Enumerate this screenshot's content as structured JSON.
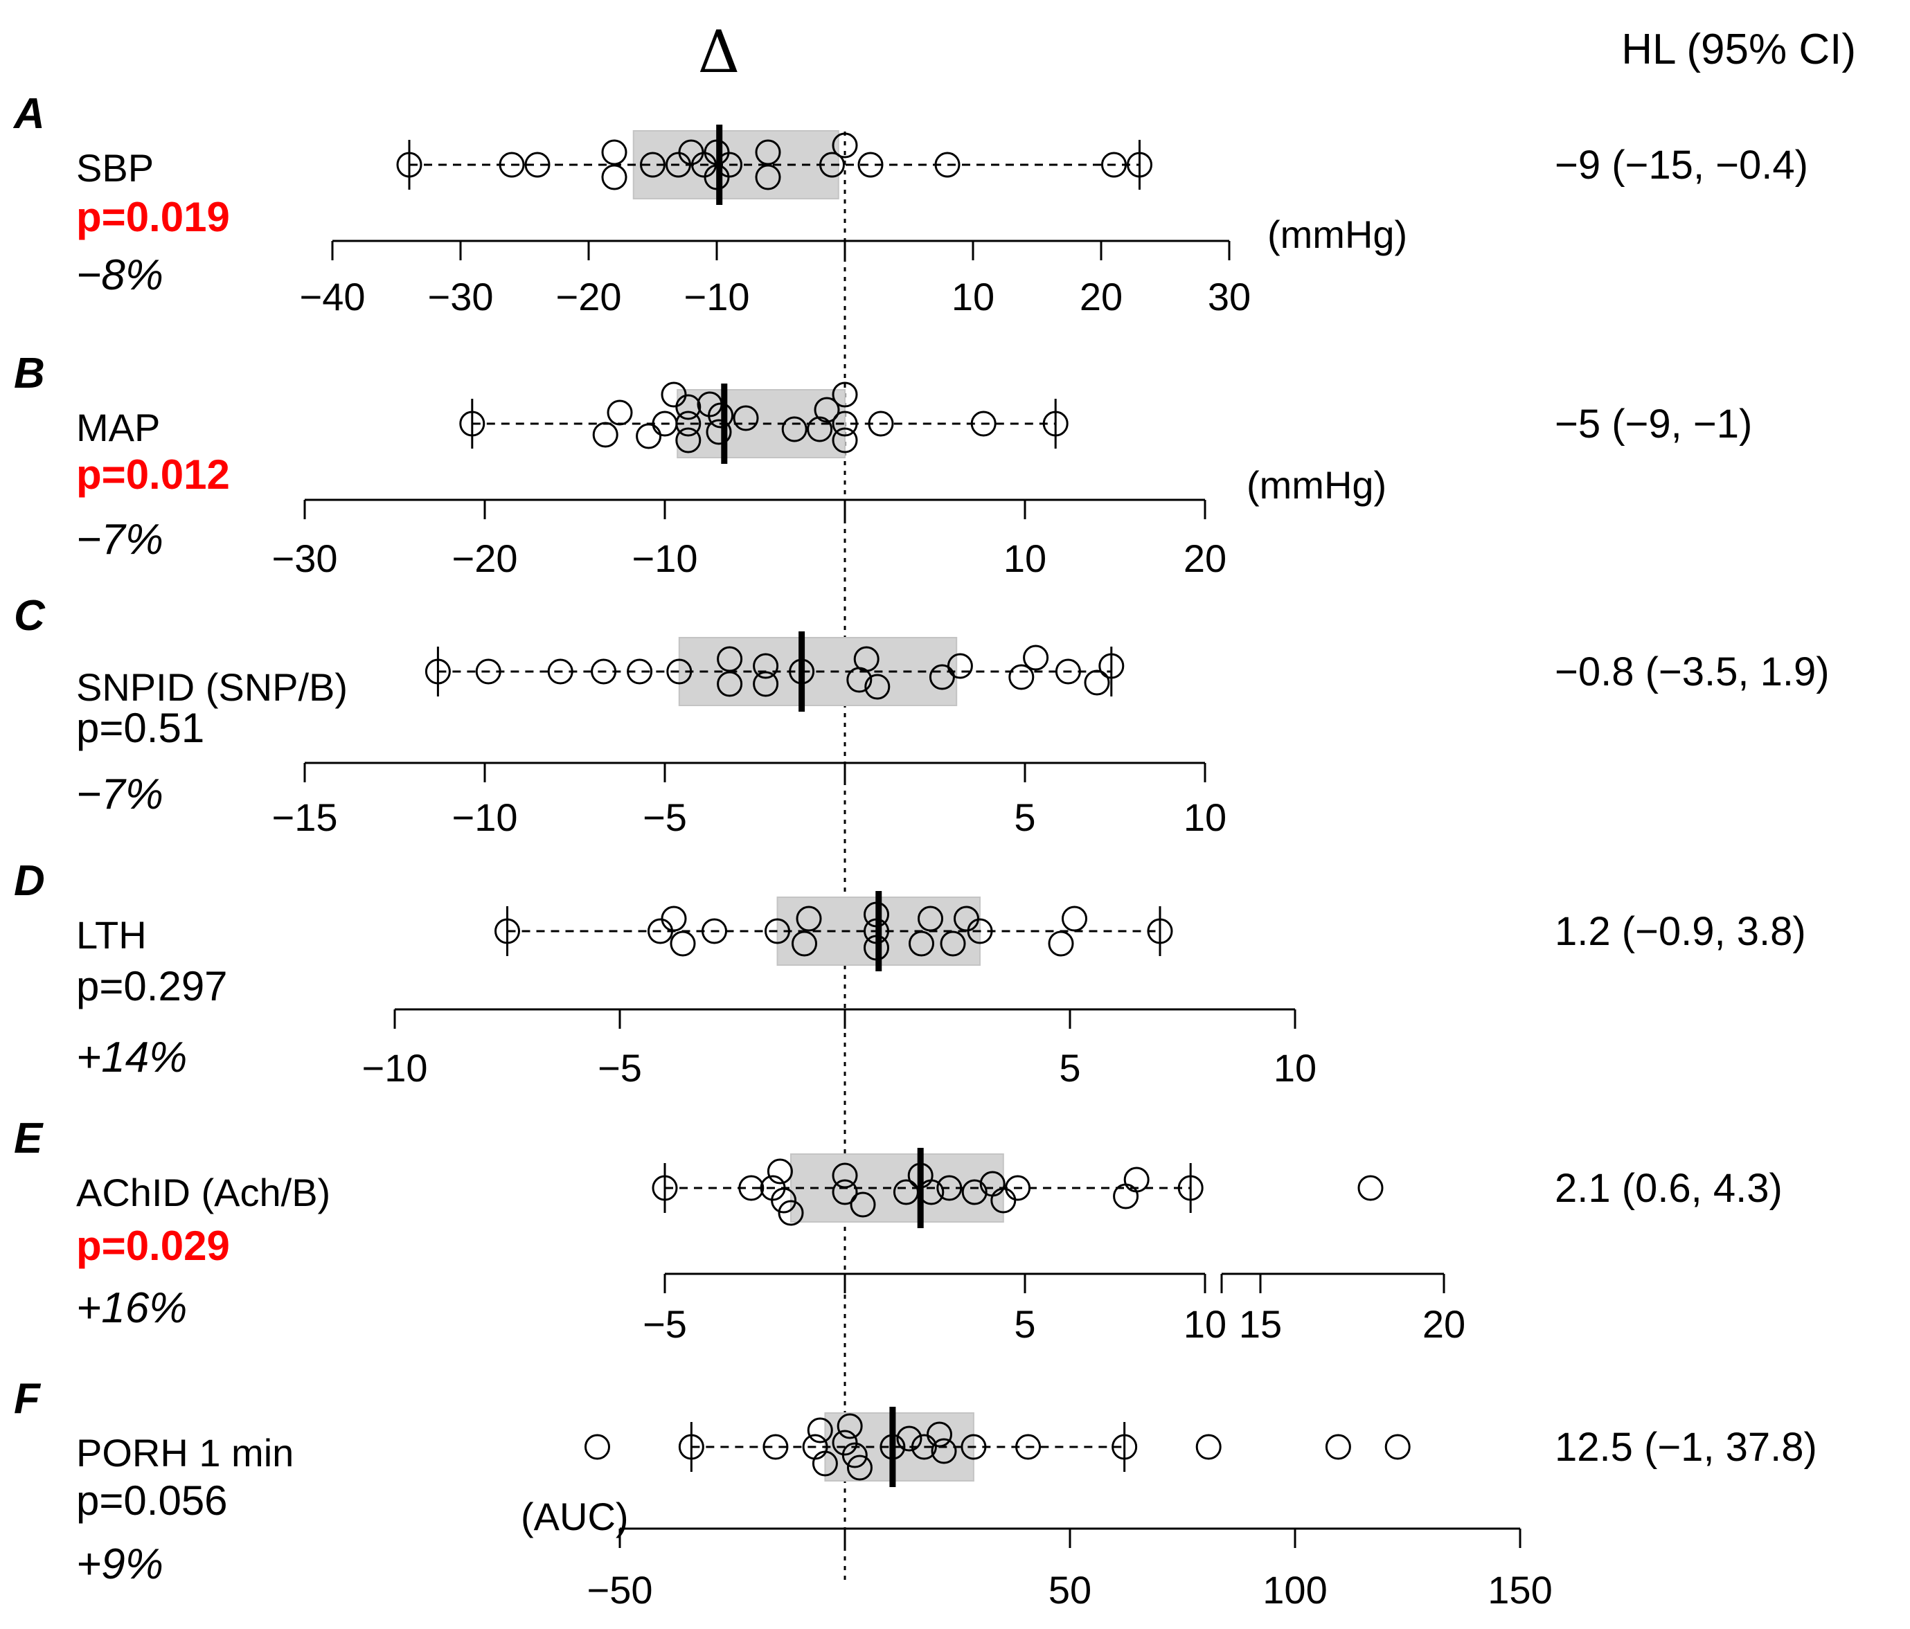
{
  "header": {
    "delta": "Δ",
    "ci_header": "HL (95% CI)"
  },
  "colors": {
    "sig": "#ff0000",
    "text": "#000000",
    "box": "#d3d3d3",
    "box_edge": "#c4c4c4"
  },
  "chart_data": [
    {
      "type": "boxplot",
      "panel": "A",
      "label": "SBP",
      "p": "p=0.019",
      "significant": true,
      "pct": "−8%",
      "hl": "−9 (−15, −0.4)",
      "unit": "(mmHg)",
      "xlim": [
        -40,
        30
      ],
      "ticks": [
        -40,
        -30,
        -20,
        -10,
        0,
        10,
        20,
        30
      ],
      "tick_labels": [
        "−40",
        "−30",
        "−20",
        "−10",
        "",
        "10",
        "20",
        "30"
      ],
      "box": {
        "q1": -16.5,
        "median": -9.8,
        "q3": -0.5,
        "whisker_low": -34,
        "whisker_high": 23
      },
      "points": [
        [
          -34,
          0
        ],
        [
          -26,
          0
        ],
        [
          -24,
          0
        ],
        [
          -18,
          -0.45
        ],
        [
          -18,
          0.45
        ],
        [
          -15,
          0
        ],
        [
          -13,
          0
        ],
        [
          -12,
          -0.45
        ],
        [
          -11,
          0
        ],
        [
          -10,
          -0.45
        ],
        [
          -10,
          0.45
        ],
        [
          -9,
          0
        ],
        [
          -6,
          -0.45
        ],
        [
          -6,
          0.45
        ],
        [
          -1,
          0
        ],
        [
          0,
          -0.7
        ],
        [
          2,
          0
        ],
        [
          8,
          0
        ],
        [
          21,
          0
        ],
        [
          23,
          0
        ]
      ]
    },
    {
      "type": "boxplot",
      "panel": "B",
      "label": "MAP",
      "p": "p=0.012",
      "significant": true,
      "pct": "−7%",
      "hl": "−5 (−9, −1)",
      "unit": "(mmHg)",
      "xlim": [
        -30,
        20
      ],
      "ticks": [
        -30,
        -20,
        -10,
        0,
        10,
        20
      ],
      "tick_labels": [
        "−30",
        "−20",
        "−10",
        "",
        "10",
        "20"
      ],
      "box": {
        "q1": -9.3,
        "median": -6.7,
        "q3": 0,
        "whisker_low": -20.7,
        "whisker_high": 11.7
      },
      "points": [
        [
          -20.7,
          0
        ],
        [
          -12.5,
          -0.4
        ],
        [
          -13.3,
          0.4
        ],
        [
          -10.9,
          0.45
        ],
        [
          -10,
          0
        ],
        [
          -9.5,
          -1.05
        ],
        [
          -8.7,
          0
        ],
        [
          -8.7,
          -0.6
        ],
        [
          -8.7,
          0.6
        ],
        [
          -7.5,
          -0.7
        ],
        [
          -6.9,
          -0.3
        ],
        [
          -7,
          0.3
        ],
        [
          -5.5,
          -0.2
        ],
        [
          -2.8,
          0.2
        ],
        [
          -1.4,
          0.2
        ],
        [
          -1,
          -0.5
        ],
        [
          0,
          -1.05
        ],
        [
          0,
          0
        ],
        [
          0,
          0.6
        ],
        [
          2,
          0
        ],
        [
          7.7,
          0
        ],
        [
          11.7,
          0
        ]
      ]
    },
    {
      "type": "boxplot",
      "panel": "C",
      "label": "SNPID (SNP/B)",
      "p": "p=0.51",
      "significant": false,
      "pct": "−7%",
      "hl": "−0.8 (−3.5, 1.9)",
      "unit": "",
      "xlim": [
        -15,
        10
      ],
      "ticks": [
        -15,
        -10,
        -5,
        0,
        5,
        10
      ],
      "tick_labels": [
        "−15",
        "−10",
        "−5",
        "",
        "5",
        "10"
      ],
      "box": {
        "q1": -4.6,
        "median": -1.2,
        "q3": 3.1,
        "whisker_low": -11.3,
        "whisker_high": 7.4
      },
      "points": [
        [
          -11.3,
          0
        ],
        [
          -9.9,
          0
        ],
        [
          -7.9,
          0
        ],
        [
          -6.7,
          0
        ],
        [
          -5.7,
          0
        ],
        [
          -4.6,
          0
        ],
        [
          -3.2,
          -0.45
        ],
        [
          -3.2,
          0.45
        ],
        [
          -2.2,
          -0.2
        ],
        [
          -2.2,
          0.45
        ],
        [
          -1.2,
          0
        ],
        [
          0.6,
          -0.45
        ],
        [
          0.4,
          0.3
        ],
        [
          0.9,
          0.55
        ],
        [
          2.7,
          0.2
        ],
        [
          3.2,
          -0.2
        ],
        [
          5.3,
          -0.5
        ],
        [
          4.9,
          0.2
        ],
        [
          6.2,
          0
        ],
        [
          7.4,
          -0.2
        ],
        [
          7,
          0.4
        ]
      ]
    },
    {
      "type": "boxplot",
      "panel": "D",
      "label": "LTH",
      "p": "p=0.297",
      "significant": false,
      "pct": "+14%",
      "hl": "1.2 (−0.9, 3.8)",
      "unit": "",
      "xlim": [
        -10,
        10
      ],
      "ticks": [
        -10,
        -5,
        0,
        5,
        10
      ],
      "tick_labels": [
        "−10",
        "−5",
        "",
        "5",
        "10"
      ],
      "box": {
        "q1": -1.5,
        "median": 0.75,
        "q3": 3,
        "whisker_low": -7.5,
        "whisker_high": 7
      },
      "points": [
        [
          -7.5,
          0
        ],
        [
          -3.8,
          -0.45
        ],
        [
          -4.1,
          0
        ],
        [
          -3.6,
          0.45
        ],
        [
          -2.9,
          0
        ],
        [
          -1.5,
          0
        ],
        [
          -0.8,
          -0.45
        ],
        [
          -0.9,
          0.45
        ],
        [
          0.7,
          -0.6
        ],
        [
          0.7,
          0
        ],
        [
          0.7,
          0.6
        ],
        [
          1.9,
          -0.45
        ],
        [
          1.7,
          0.45
        ],
        [
          2.7,
          -0.45
        ],
        [
          2.4,
          0.45
        ],
        [
          3,
          0
        ],
        [
          5.1,
          -0.45
        ],
        [
          4.8,
          0.45
        ],
        [
          7,
          0
        ]
      ]
    },
    {
      "type": "boxplot",
      "panel": "E",
      "label": "AChID (Ach/B)",
      "p": "p=0.029",
      "significant": true,
      "pct": "+16%",
      "hl": "2.1 (0.6, 4.3)",
      "unit": "",
      "xlim": [
        -5,
        20
      ],
      "axis_break": [
        10,
        15
      ],
      "ticks": [
        -5,
        0,
        5,
        10,
        15,
        20
      ],
      "tick_labels": [
        "−5",
        "",
        "5",
        "10",
        "15",
        "20"
      ],
      "box": {
        "q1": -1.5,
        "median": 2.1,
        "q3": 4.4,
        "whisker_low": -5,
        "whisker_high": 9.6
      },
      "points": [
        [
          -5,
          0
        ],
        [
          -2.6,
          0
        ],
        [
          -1.8,
          -0.6
        ],
        [
          -2,
          0
        ],
        [
          -1.7,
          0.45
        ],
        [
          -1.5,
          0.9
        ],
        [
          0,
          -0.45
        ],
        [
          0,
          0.15
        ],
        [
          0.5,
          0.6
        ],
        [
          1.7,
          0.15
        ],
        [
          2.1,
          -0.45
        ],
        [
          2.4,
          0.15
        ],
        [
          2.9,
          0
        ],
        [
          3.6,
          0.15
        ],
        [
          4.1,
          -0.15
        ],
        [
          4.4,
          0.45
        ],
        [
          4.8,
          0
        ],
        [
          8.1,
          -0.3
        ],
        [
          7.8,
          0.3
        ],
        [
          9.6,
          0
        ],
        [
          18,
          0
        ]
      ]
    },
    {
      "type": "boxplot",
      "panel": "F",
      "label": "PORH 1 min",
      "p": "p=0.056",
      "significant": false,
      "pct": "+9%",
      "hl": "12.5 (−1, 37.8)",
      "unit": "(AUC)",
      "xlim": [
        -50,
        150
      ],
      "ticks": [
        -50,
        0,
        50,
        100,
        150
      ],
      "tick_labels": [
        "−50",
        "",
        "50",
        "100",
        "150"
      ],
      "box": {
        "q1": -4.4,
        "median": 10.6,
        "q3": 28.6,
        "whisker_low": -34.1,
        "whisker_high": 62.1
      },
      "points": [
        [
          -55,
          0
        ],
        [
          -34.1,
          0
        ],
        [
          -15.4,
          0
        ],
        [
          -6.6,
          0
        ],
        [
          -5.5,
          -0.6
        ],
        [
          -4.4,
          0.6
        ],
        [
          1.1,
          -0.75
        ],
        [
          0,
          -0.15
        ],
        [
          2.2,
          0.3
        ],
        [
          3.3,
          0.75
        ],
        [
          10.6,
          0
        ],
        [
          14.3,
          -0.3
        ],
        [
          17.6,
          0
        ],
        [
          21,
          -0.45
        ],
        [
          22,
          0.15
        ],
        [
          28.6,
          0
        ],
        [
          40.7,
          0
        ],
        [
          62.1,
          0
        ],
        [
          80.8,
          0
        ],
        [
          109.6,
          0
        ],
        [
          122.8,
          0
        ]
      ]
    }
  ]
}
